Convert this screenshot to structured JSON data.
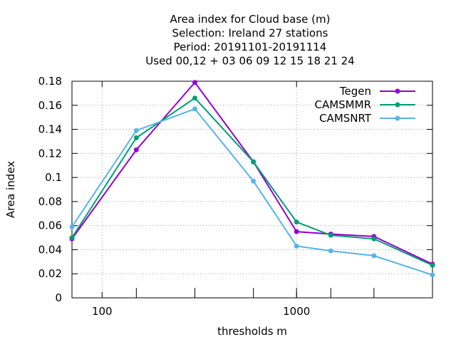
{
  "chart_data": {
    "type": "line",
    "title_lines": [
      "Area index  for Cloud base (m)",
      "Selection: Ireland     27 stations",
      "Period: 20191101-20191114",
      "Used  00,12  + 03 06 09 12 15 18 21 24"
    ],
    "xlabel": "thresholds m",
    "ylabel": "Area index",
    "x_scale": "log",
    "xlim": [
      70,
      5000
    ],
    "ylim": [
      0,
      0.18
    ],
    "x_ticks": [
      100,
      1000
    ],
    "x_tick_labels": [
      "100",
      "1000"
    ],
    "y_ticks": [
      0,
      0.02,
      0.04,
      0.06,
      0.08,
      0.1,
      0.12,
      0.14,
      0.16,
      0.18
    ],
    "y_tick_labels": [
      "0",
      "0.02",
      "0.04",
      "0.06",
      "0.08",
      "0.1",
      "0.12",
      "0.14",
      "0.16",
      "0.18"
    ],
    "x": [
      70,
      150,
      300,
      600,
      1000,
      1500,
      2500,
      5000
    ],
    "grid": true,
    "legend_position": "top-right",
    "series": [
      {
        "name": "Tegen",
        "color": "#9400d3",
        "values": [
          0.049,
          0.123,
          0.179,
          0.113,
          0.055,
          0.053,
          0.051,
          0.028
        ]
      },
      {
        "name": "CAMSMMR",
        "color": "#009e73",
        "values": [
          0.05,
          0.133,
          0.166,
          0.113,
          0.063,
          0.052,
          0.049,
          0.027
        ]
      },
      {
        "name": "CAMSNRT",
        "color": "#56b4e9",
        "values": [
          0.059,
          0.139,
          0.157,
          0.097,
          0.043,
          0.039,
          0.035,
          0.019
        ]
      }
    ]
  }
}
